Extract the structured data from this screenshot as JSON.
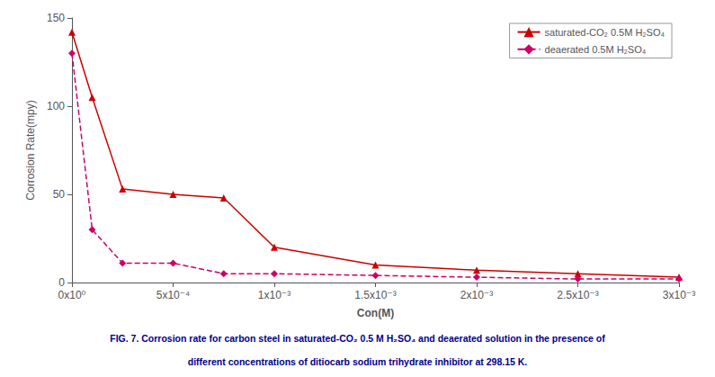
{
  "chart_data": {
    "type": "line",
    "xlabel": "Con(M)",
    "ylabel": "Corrosion Rate(mpy)",
    "x": [
      0,
      0.0001,
      0.00025,
      0.0005,
      0.00075,
      0.001,
      0.0015,
      0.002,
      0.0025,
      0.003
    ],
    "series": [
      {
        "name": "saturated-CO₂ 0.5M H₂SO₄",
        "color": "#cc0000",
        "marker": "triangle",
        "line_style": "solid",
        "values": [
          142,
          105,
          53,
          50,
          48,
          20,
          10,
          7,
          5,
          3
        ]
      },
      {
        "name": "deaerated 0.5M H₂SO₄",
        "color": "#cc0066",
        "marker": "diamond",
        "line_style": "dashed",
        "values": [
          130,
          30,
          11,
          11,
          5,
          5,
          4,
          3,
          2,
          2
        ]
      }
    ],
    "xlim": [
      0,
      0.003
    ],
    "xticks": [
      {
        "value": 0,
        "label": "0x10⁰"
      },
      {
        "value": 0.0005,
        "label": "5x10⁻⁴"
      },
      {
        "value": 0.001,
        "label": "1x10⁻³"
      },
      {
        "value": 0.0015,
        "label": "1.5x10⁻³"
      },
      {
        "value": 0.002,
        "label": "2x10⁻³"
      },
      {
        "value": 0.0025,
        "label": "2.5x10⁻³"
      },
      {
        "value": 0.003,
        "label": "3x10⁻³"
      }
    ],
    "ylim": [
      0,
      150
    ],
    "yticks": [
      0,
      50,
      100,
      150
    ],
    "grid": false,
    "legend": "upper right",
    "annotations": [
      "FIG. 7. Corrosion rate for carbon steel in saturated-CO₂ 0.5 M H₂SO₄ and deaerated solution in the presence of",
      "different concentrations of ditiocarb sodium trihydrate inhibitor at 298.15 K."
    ]
  }
}
